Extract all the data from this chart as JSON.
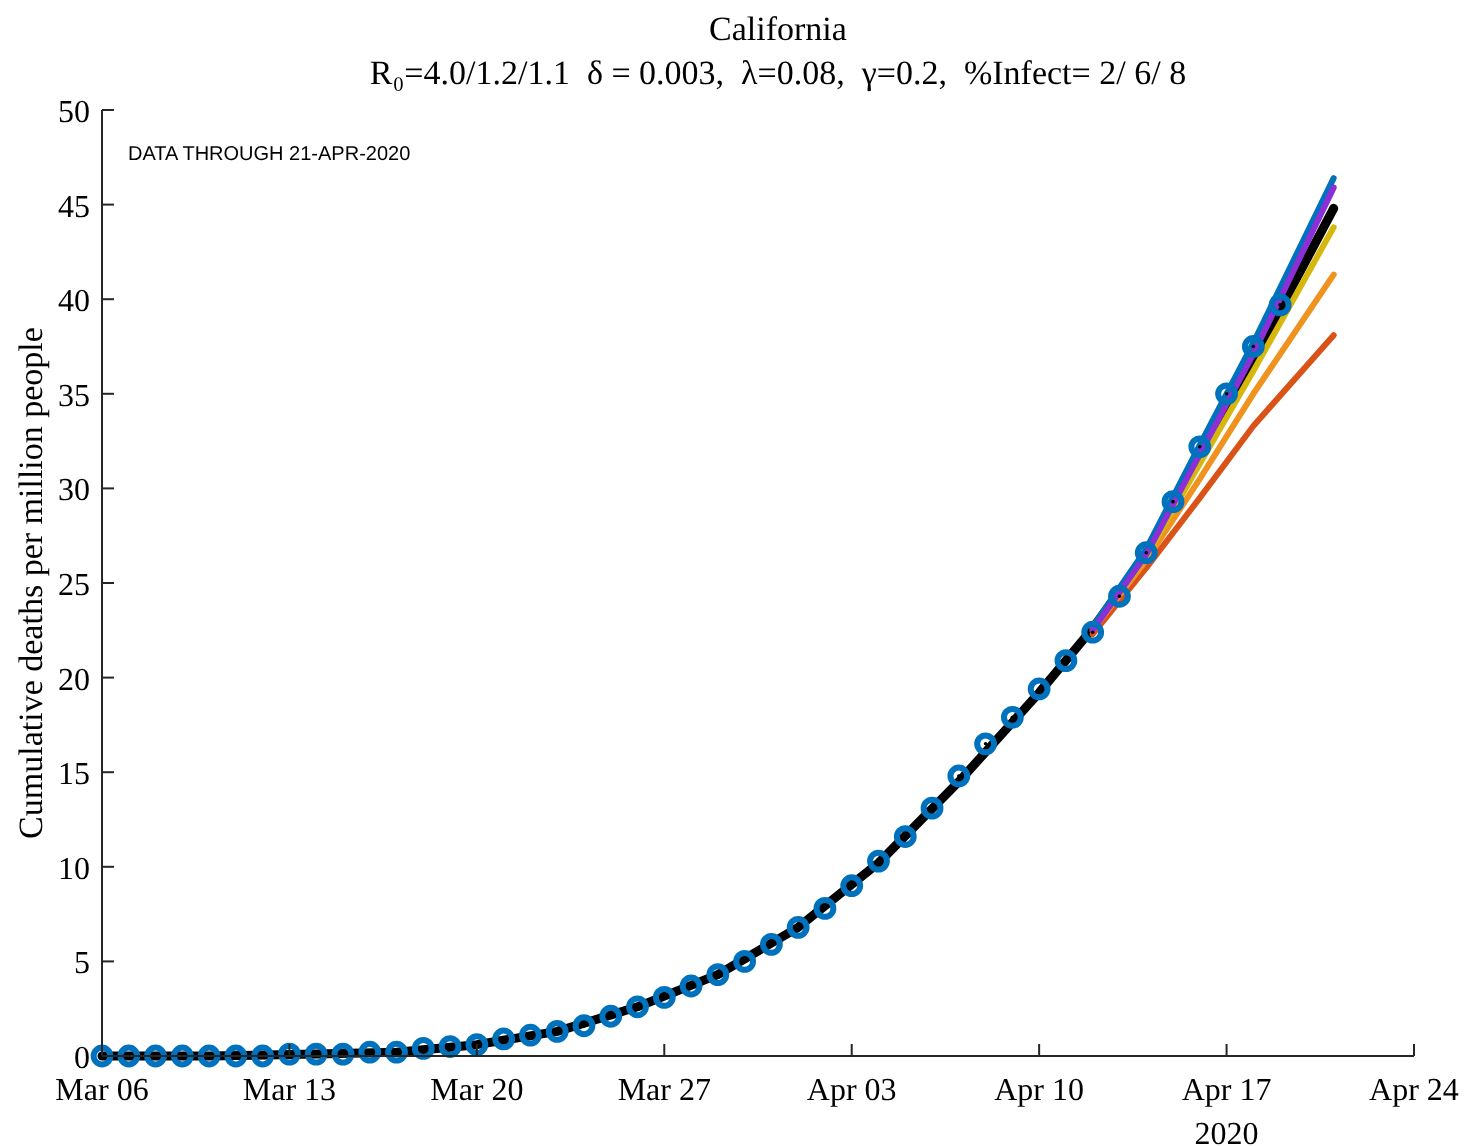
{
  "chart_data": {
    "type": "line",
    "title": "California",
    "subtitle": "R₀=4.0/1.2/1.1  δ = 0.003,  λ=0.08,  γ=0.2,  %Infect= 2/ 6/ 8",
    "ylabel": "Cumulative deaths per million people",
    "annotations": [
      "DATA THROUGH 21-APR-2020",
      "2020"
    ],
    "xlim": [
      "2020-03-06",
      "2020-04-24"
    ],
    "xticks": [
      {
        "value": "2020-03-06",
        "label": "Mar 06"
      },
      {
        "value": "2020-03-13",
        "label": "Mar 13"
      },
      {
        "value": "2020-03-20",
        "label": "Mar 20"
      },
      {
        "value": "2020-03-27",
        "label": "Mar 27"
      },
      {
        "value": "2020-04-03",
        "label": "Apr 03"
      },
      {
        "value": "2020-04-10",
        "label": "Apr 10"
      },
      {
        "value": "2020-04-17",
        "label": "Apr 17"
      },
      {
        "value": "2020-04-24",
        "label": "Apr 24"
      }
    ],
    "ylim": [
      0,
      50
    ],
    "yticks": [
      0,
      5,
      10,
      15,
      20,
      25,
      30,
      35,
      40,
      45,
      50
    ],
    "grid": false,
    "line_style": "solid",
    "marker": "none",
    "series": [
      {
        "color": "#000000",
        "x": [
          "2020-03-06",
          "2020-03-10",
          "2020-03-14",
          "2020-03-17",
          "2020-03-20",
          "2020-03-23",
          "2020-03-26",
          "2020-03-29",
          "2020-04-01",
          "2020-04-04",
          "2020-04-07",
          "2020-04-10",
          "2020-04-12",
          "2020-04-14",
          "2020-04-16",
          "2020-04-18",
          "2020-04-21"
        ],
        "values": [
          0,
          0,
          0.1,
          0.2,
          0.6,
          1.3,
          2.6,
          4.3,
          6.8,
          10.2,
          14.5,
          19.2,
          22.6,
          26.5,
          31.8,
          36.8,
          44.8
        ]
      },
      {
        "color": "#d95319",
        "x": [
          "2020-04-12",
          "2020-04-14",
          "2020-04-16",
          "2020-04-18",
          "2020-04-21"
        ],
        "values": [
          22.3,
          25.8,
          29.5,
          33.3,
          38.1
        ]
      },
      {
        "color": "#f0921e",
        "x": [
          "2020-04-12",
          "2020-04-14",
          "2020-04-16",
          "2020-04-18",
          "2020-04-21"
        ],
        "values": [
          22.5,
          26.2,
          30.5,
          35,
          41.3
        ]
      },
      {
        "color": "#d6b80c",
        "x": [
          "2020-04-12",
          "2020-04-14",
          "2020-04-16",
          "2020-04-18",
          "2020-04-21"
        ],
        "values": [
          22.6,
          26.4,
          31.3,
          36.2,
          43.8
        ]
      },
      {
        "color": "#0072bd",
        "x": [
          "2020-04-12",
          "2020-04-14",
          "2020-04-16",
          "2020-04-18",
          "2020-04-21"
        ],
        "values": [
          22.7,
          26.8,
          32.3,
          37.7,
          46.4
        ]
      },
      {
        "color": "#8b2fd6",
        "x": [
          "2020-04-12",
          "2020-04-14",
          "2020-04-16",
          "2020-04-18",
          "2020-04-21"
        ],
        "values": [
          22.5,
          26.5,
          31.8,
          37.1,
          45.9
        ]
      },
      {
        "type": "scatter",
        "marker": "circle",
        "color": "#0072bd",
        "x": [
          "2020-03-06",
          "2020-03-07",
          "2020-03-08",
          "2020-03-09",
          "2020-03-10",
          "2020-03-11",
          "2020-03-12",
          "2020-03-13",
          "2020-03-14",
          "2020-03-15",
          "2020-03-16",
          "2020-03-17",
          "2020-03-18",
          "2020-03-19",
          "2020-03-20",
          "2020-03-21",
          "2020-03-22",
          "2020-03-23",
          "2020-03-24",
          "2020-03-25",
          "2020-03-26",
          "2020-03-27",
          "2020-03-28",
          "2020-03-29",
          "2020-03-30",
          "2020-03-31",
          "2020-04-01",
          "2020-04-02",
          "2020-04-03",
          "2020-04-04",
          "2020-04-05",
          "2020-04-06",
          "2020-04-07",
          "2020-04-08",
          "2020-04-09",
          "2020-04-10",
          "2020-04-11",
          "2020-04-12",
          "2020-04-13",
          "2020-04-14",
          "2020-04-15",
          "2020-04-16",
          "2020-04-17",
          "2020-04-18",
          "2020-04-19"
        ],
        "values": [
          0,
          0,
          0,
          0,
          0,
          0,
          0,
          0.1,
          0.1,
          0.1,
          0.2,
          0.2,
          0.4,
          0.5,
          0.6,
          0.9,
          1.1,
          1.3,
          1.6,
          2.1,
          2.6,
          3.1,
          3.7,
          4.3,
          5,
          5.9,
          6.8,
          7.8,
          9,
          10.3,
          11.6,
          13.1,
          14.8,
          16.5,
          17.9,
          19.4,
          20.9,
          22.4,
          24.3,
          26.6,
          29.3,
          32.2,
          35,
          37.5,
          39.7
        ]
      }
    ]
  }
}
